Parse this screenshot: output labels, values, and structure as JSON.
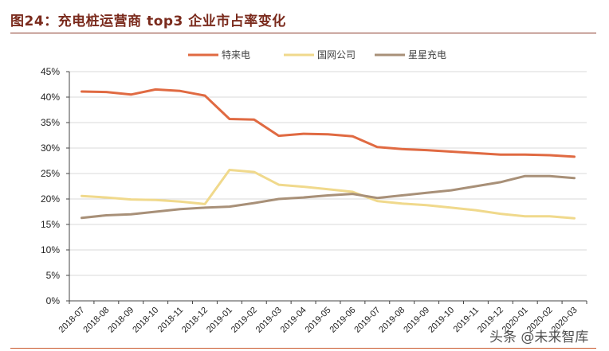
{
  "header": {
    "title": "图24：充电桩运营商 top3 企业市占率变化"
  },
  "watermark": "头条 @未来智库",
  "colors": {
    "teld": "#e06a42",
    "state_grid": "#f0d98c",
    "star_charge": "#a89078",
    "grid": "#d9d9d9",
    "axis": "#444444"
  },
  "chart_data": {
    "type": "line",
    "title": "图24：充电桩运营商 top3 企业市占率变化",
    "xlabel": "",
    "ylabel": "",
    "ylim": [
      0,
      45
    ],
    "yticks": [
      "0%",
      "5%",
      "10%",
      "15%",
      "20%",
      "25%",
      "30%",
      "35%",
      "40%",
      "45%"
    ],
    "grid": true,
    "legend_position": "top",
    "categories": [
      "2018-07",
      "2018-08",
      "2018-09",
      "2018-10",
      "2018-11",
      "2018-12",
      "2019-01",
      "2019-02",
      "2019-03",
      "2019-04",
      "2019-05",
      "2019-06",
      "2019-07",
      "2019-08",
      "2019-09",
      "2019-10",
      "2019-11",
      "2019-12",
      "2020-01",
      "2020-02",
      "2020-03"
    ],
    "series": [
      {
        "name": "特来电",
        "color": "#e06a42",
        "values": [
          41.1,
          41.0,
          40.5,
          41.5,
          41.2,
          40.3,
          35.7,
          35.6,
          32.4,
          32.8,
          32.7,
          32.3,
          30.2,
          29.8,
          29.6,
          29.3,
          29.0,
          28.7,
          28.7,
          28.6,
          28.3
        ]
      },
      {
        "name": "国网公司",
        "color": "#f0d98c",
        "values": [
          20.6,
          20.3,
          19.9,
          19.8,
          19.5,
          19.0,
          25.7,
          25.3,
          22.8,
          22.4,
          21.9,
          21.4,
          19.6,
          19.1,
          18.8,
          18.3,
          17.8,
          17.1,
          16.6,
          16.6,
          16.2
        ]
      },
      {
        "name": "星星充电",
        "color": "#a89078",
        "values": [
          16.3,
          16.8,
          17.0,
          17.5,
          18.0,
          18.3,
          18.5,
          19.2,
          20.0,
          20.3,
          20.7,
          21.0,
          20.2,
          20.7,
          21.2,
          21.7,
          22.5,
          23.3,
          24.5,
          24.5,
          24.1
        ]
      }
    ]
  }
}
